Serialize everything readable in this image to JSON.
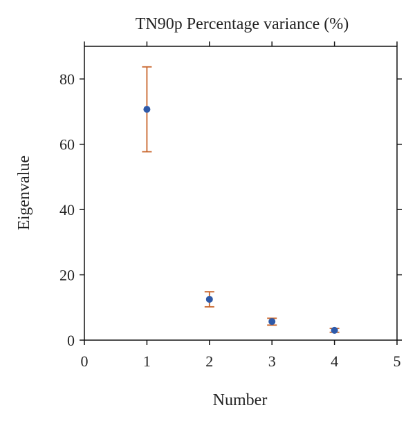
{
  "chart_data": {
    "type": "scatter",
    "title": "TN90p Percentage variance (%)",
    "xlabel": "Number",
    "ylabel": "Eigenvalue",
    "xlim": [
      0,
      5
    ],
    "ylim": [
      0,
      90
    ],
    "xticks": [
      0,
      1,
      2,
      3,
      4,
      5
    ],
    "yticks": [
      0,
      20,
      40,
      60,
      80
    ],
    "grid": false,
    "series": [
      {
        "points": [
          {
            "x": 1,
            "y": 70.7,
            "err_low": 57.7,
            "err_high": 83.7
          },
          {
            "x": 2,
            "y": 12.5,
            "err_low": 10.2,
            "err_high": 14.8
          },
          {
            "x": 3,
            "y": 5.7,
            "err_low": 4.6,
            "err_high": 6.7
          },
          {
            "x": 4,
            "y": 3.0,
            "err_low": 2.4,
            "err_high": 3.6
          }
        ],
        "marker_color": "#2e59a8",
        "errorbar_color": "#c8642a"
      }
    ]
  }
}
